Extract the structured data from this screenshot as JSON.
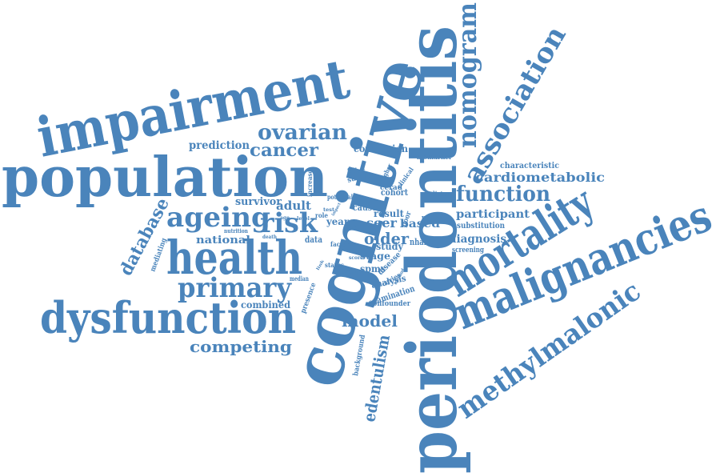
{
  "cloud": {
    "color": "#4a84bb",
    "words": {
      "periodontitis": "periodontitis",
      "cognitive": "cognitive",
      "population": "population",
      "impairment": "impairment",
      "malignancies": "malignancies",
      "health": "health",
      "dysfunction": "dysfunction",
      "mortality": "mortality",
      "methylmalonic": "methylmalonic",
      "association": "association",
      "nomogram": "nomogram",
      "primary": "primary",
      "ageing": "ageing",
      "risk": "risk",
      "function": "function",
      "ovarian": "ovarian",
      "cancer": "cancer",
      "database": "database",
      "edentulism": "edentulism",
      "competing": "competing",
      "model": "model",
      "cardiometabolic": "cardiometabolic",
      "older": "older",
      "prediction": "prediction",
      "participant": "participant",
      "diagnosis": "diagnosis",
      "national": "national",
      "survivor": "survivor",
      "adult": "adult",
      "combined": "combined",
      "conclusion": "conclusion",
      "seer": "seer",
      "based": "based",
      "stage": "stage",
      "study": "study",
      "spms": "spms",
      "year": "year",
      "result": "result",
      "examination": "examination",
      "analysis": "analysis",
      "disease": "disease",
      "cohort": "cohort",
      "cause": "cause",
      "nhanes": "nhanes",
      "substitution": "substitution",
      "characteristic": "characteristic",
      "biomarker": "biomarker",
      "screening": "screening",
      "confounder": "confounder",
      "patient": "patient",
      "predictor": "predictor",
      "background": "background",
      "presence": "presence",
      "mediating": "mediating",
      "oral": "oral",
      "data": "data",
      "factor": "factor",
      "status": "status",
      "cerad": "cerad",
      "survey": "survey",
      "follow": "follow",
      "increase": "increase",
      "potential": "potential",
      "median": "median",
      "poor": "poor",
      "higher": "higher",
      "clinical": "clinical",
      "caries": "caries",
      "role": "role",
      "nutrition": "nutrition",
      "death": "death",
      "total": "total",
      "score": "score",
      "effect": "effect",
      "method": "method",
      "level": "level",
      "test": "test",
      "impact": "impact",
      "link": "link",
      "age": "age"
    }
  }
}
